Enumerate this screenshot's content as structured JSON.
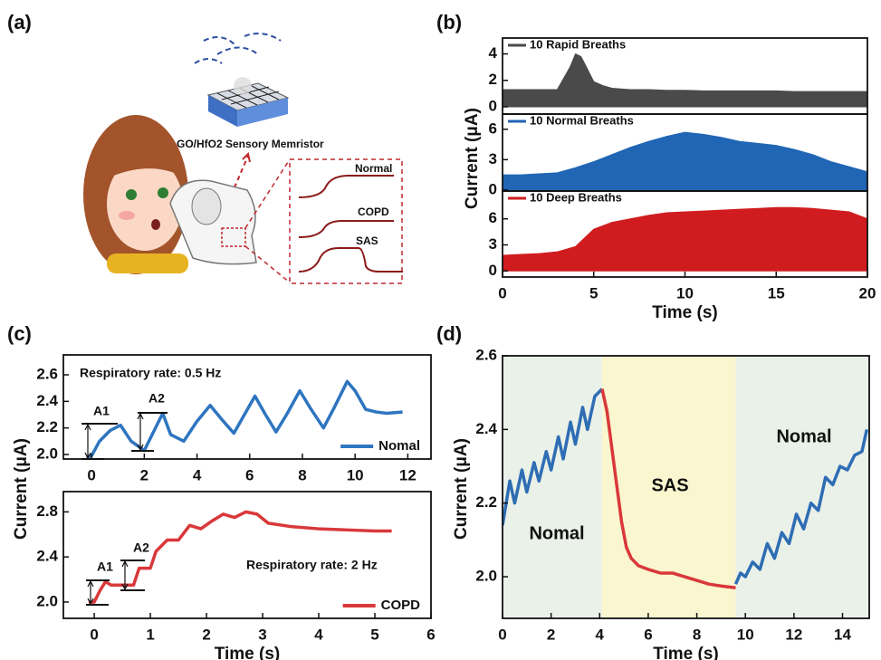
{
  "panel_labels": [
    "(a)",
    "(b)",
    "(c)",
    "(d)"
  ],
  "illustration": {
    "device": "GO/HfO2 Sensory Memristor",
    "curves": [
      "Normal",
      "COPD",
      "SAS"
    ]
  },
  "chart_data": [
    {
      "type": "area",
      "xlim": [
        0,
        20
      ],
      "ylim": [
        -0.55,
        5.2
      ],
      "yticks": [
        0,
        2,
        4
      ],
      "legend": "upper left",
      "series": [
        {
          "name": "10 Rapid Breaths",
          "color": "#4a4a4a",
          "x": [
            0,
            1,
            2,
            3,
            3.7,
            4,
            4.3,
            4.6,
            5,
            5.5,
            6,
            7,
            8,
            9,
            10,
            11,
            12,
            13,
            14,
            15,
            16,
            17,
            18,
            19,
            20
          ],
          "values": [
            1.3,
            1.3,
            1.3,
            1.3,
            3.0,
            4.0,
            3.8,
            3.0,
            1.9,
            1.6,
            1.4,
            1.3,
            1.3,
            1.25,
            1.25,
            1.2,
            1.2,
            1.2,
            1.2,
            1.2,
            1.15,
            1.15,
            1.15,
            1.15,
            1.15
          ]
        }
      ]
    },
    {
      "type": "area",
      "xlim": [
        0,
        20
      ],
      "ylim": [
        -0.1,
        7.5
      ],
      "yticks": [
        0,
        3,
        6
      ],
      "legend": "upper left",
      "ylabel": "Current (μA)",
      "series": [
        {
          "name": "10 Normal Breaths",
          "color": "#2166b5",
          "x": [
            0,
            1,
            2,
            3,
            4,
            5,
            6,
            7,
            8,
            9,
            10,
            11,
            12,
            13,
            14,
            15,
            16,
            17,
            18,
            19,
            20
          ],
          "values": [
            1.5,
            1.5,
            1.6,
            1.7,
            2.2,
            2.8,
            3.5,
            4.2,
            4.8,
            5.3,
            5.7,
            5.5,
            5.2,
            4.8,
            4.6,
            4.4,
            4.0,
            3.5,
            2.8,
            2.3,
            1.8
          ]
        }
      ]
    },
    {
      "type": "area",
      "xlim": [
        0,
        20
      ],
      "ylim": [
        -0.7,
        9.2
      ],
      "xticks": [
        0,
        5,
        10,
        15,
        20
      ],
      "yticks": [
        0,
        3,
        6
      ],
      "legend": "upper left",
      "xlabel": "Time (s)",
      "series": [
        {
          "name": "10 Deep Breaths",
          "color": "#d01c1f",
          "x": [
            0,
            1,
            2,
            3,
            4,
            5,
            6,
            7,
            8,
            9,
            10,
            11,
            12,
            13,
            14,
            15,
            16,
            17,
            18,
            19,
            20
          ],
          "values": [
            1.8,
            1.9,
            2.0,
            2.2,
            2.8,
            4.8,
            5.6,
            6.0,
            6.4,
            6.7,
            6.8,
            6.9,
            7.0,
            7.1,
            7.2,
            7.3,
            7.3,
            7.2,
            7.0,
            6.8,
            6.0
          ]
        }
      ]
    },
    {
      "type": "line",
      "xlim": [
        -1.07,
        12.88
      ],
      "ylim": [
        1.966,
        2.75
      ],
      "xticks": [
        0,
        2,
        4,
        6,
        8,
        10,
        12
      ],
      "yticks": [
        {
          "value": 2.0,
          "label": "2.0"
        },
        2.2,
        2.4,
        2.6
      ],
      "legend": "lower right",
      "ylabel": "Current (μA)",
      "annotations": [
        "Respiratory rate: 0.5 Hz",
        "A1",
        "A2"
      ],
      "series": [
        {
          "name": "Nomal",
          "color": "#2e75c0",
          "x": [
            -0.2,
            0,
            0.3,
            0.7,
            1.1,
            1.5,
            2,
            2.3,
            2.7,
            3.0,
            3.5,
            4.0,
            4.5,
            5.0,
            5.4,
            5.8,
            6.2,
            6.6,
            7.0,
            7.4,
            7.9,
            8.3,
            8.8,
            9.2,
            9.7,
            10.0,
            10.4,
            10.8,
            11.2,
            11.8
          ],
          "values": [
            1.98,
            1.99,
            2.1,
            2.18,
            2.22,
            2.1,
            2.03,
            2.15,
            2.31,
            2.15,
            2.1,
            2.25,
            2.37,
            2.25,
            2.16,
            2.3,
            2.44,
            2.3,
            2.17,
            2.3,
            2.48,
            2.35,
            2.2,
            2.35,
            2.55,
            2.48,
            2.34,
            2.32,
            2.31,
            2.32
          ]
        }
      ]
    },
    {
      "type": "line",
      "xlim": [
        -0.55,
        6.0
      ],
      "ylim": [
        1.855,
        2.98
      ],
      "xticks": [
        0,
        1,
        2,
        3,
        4,
        5,
        6
      ],
      "yticks": [
        {
          "value": 2.0,
          "label": "2.0"
        },
        2.4,
        2.8
      ],
      "legend": "lower right",
      "xlabel": "Time (s)",
      "annotations": [
        "Respiratory rate: 2 Hz",
        "A1",
        "A2"
      ],
      "series": [
        {
          "name": "COPD",
          "color": "#d9383a",
          "x": [
            -0.1,
            0,
            0.1,
            0.2,
            0.3,
            0.5,
            0.7,
            0.8,
            0.9,
            1.0,
            1.1,
            1.3,
            1.5,
            1.7,
            1.9,
            2.1,
            2.3,
            2.5,
            2.7,
            2.9,
            3.1,
            3.5,
            4,
            4.5,
            5,
            5.3
          ],
          "values": [
            2.0,
            2.0,
            2.1,
            2.18,
            2.15,
            2.15,
            2.15,
            2.3,
            2.3,
            2.3,
            2.45,
            2.55,
            2.55,
            2.68,
            2.65,
            2.72,
            2.78,
            2.75,
            2.8,
            2.78,
            2.7,
            2.67,
            2.65,
            2.64,
            2.63,
            2.63
          ]
        }
      ]
    },
    {
      "type": "line",
      "xlim": [
        0,
        15.1
      ],
      "ylim": [
        1.887,
        2.6
      ],
      "xticks": [
        0,
        2,
        4,
        6,
        8,
        10,
        12,
        14
      ],
      "yticks": [
        {
          "value": 2.0,
          "label": "2.0"
        },
        2.2,
        2.4,
        2.6
      ],
      "xlabel": "Time (s)",
      "ylabel": "Current (μA)",
      "regions": [
        {
          "x0": 0,
          "x1": 4.1,
          "color": "#e9f1e8"
        },
        {
          "x0": 4.1,
          "x1": 9.6,
          "color": "#faf6cf"
        },
        {
          "x0": 9.6,
          "x1": 15.1,
          "color": "#e9f1e8"
        }
      ],
      "annotations": [
        "Nomal",
        "SAS",
        "Nomal"
      ],
      "series": [
        {
          "name": "Nomal",
          "color": "#2e6db4",
          "x": [
            0,
            0.3,
            0.5,
            0.8,
            1.0,
            1.3,
            1.5,
            1.8,
            2.0,
            2.3,
            2.5,
            2.8,
            3.0,
            3.3,
            3.5,
            3.8,
            4.1
          ],
          "values": [
            2.14,
            2.26,
            2.2,
            2.29,
            2.23,
            2.31,
            2.26,
            2.34,
            2.29,
            2.38,
            2.32,
            2.42,
            2.36,
            2.46,
            2.4,
            2.49,
            2.51
          ]
        },
        {
          "name": "SAS",
          "color": "#d9383a",
          "x": [
            4.1,
            4.3,
            4.5,
            4.7,
            4.9,
            5.1,
            5.3,
            5.6,
            6,
            6.5,
            7,
            7.5,
            8,
            8.5,
            9,
            9.6
          ],
          "values": [
            2.51,
            2.45,
            2.35,
            2.25,
            2.15,
            2.08,
            2.05,
            2.03,
            2.02,
            2.01,
            2.01,
            2.0,
            1.99,
            1.98,
            1.975,
            1.97
          ]
        },
        {
          "name": "Nomal",
          "color": "#2e6db4",
          "x": [
            9.6,
            9.8,
            10.0,
            10.3,
            10.6,
            10.9,
            11.2,
            11.5,
            11.8,
            12.1,
            12.4,
            12.7,
            13.0,
            13.3,
            13.6,
            13.9,
            14.2,
            14.5,
            14.8,
            15.0
          ],
          "values": [
            1.98,
            2.01,
            2.0,
            2.04,
            2.02,
            2.09,
            2.05,
            2.12,
            2.09,
            2.17,
            2.13,
            2.2,
            2.18,
            2.27,
            2.25,
            2.3,
            2.29,
            2.33,
            2.34,
            2.4
          ]
        }
      ]
    }
  ]
}
